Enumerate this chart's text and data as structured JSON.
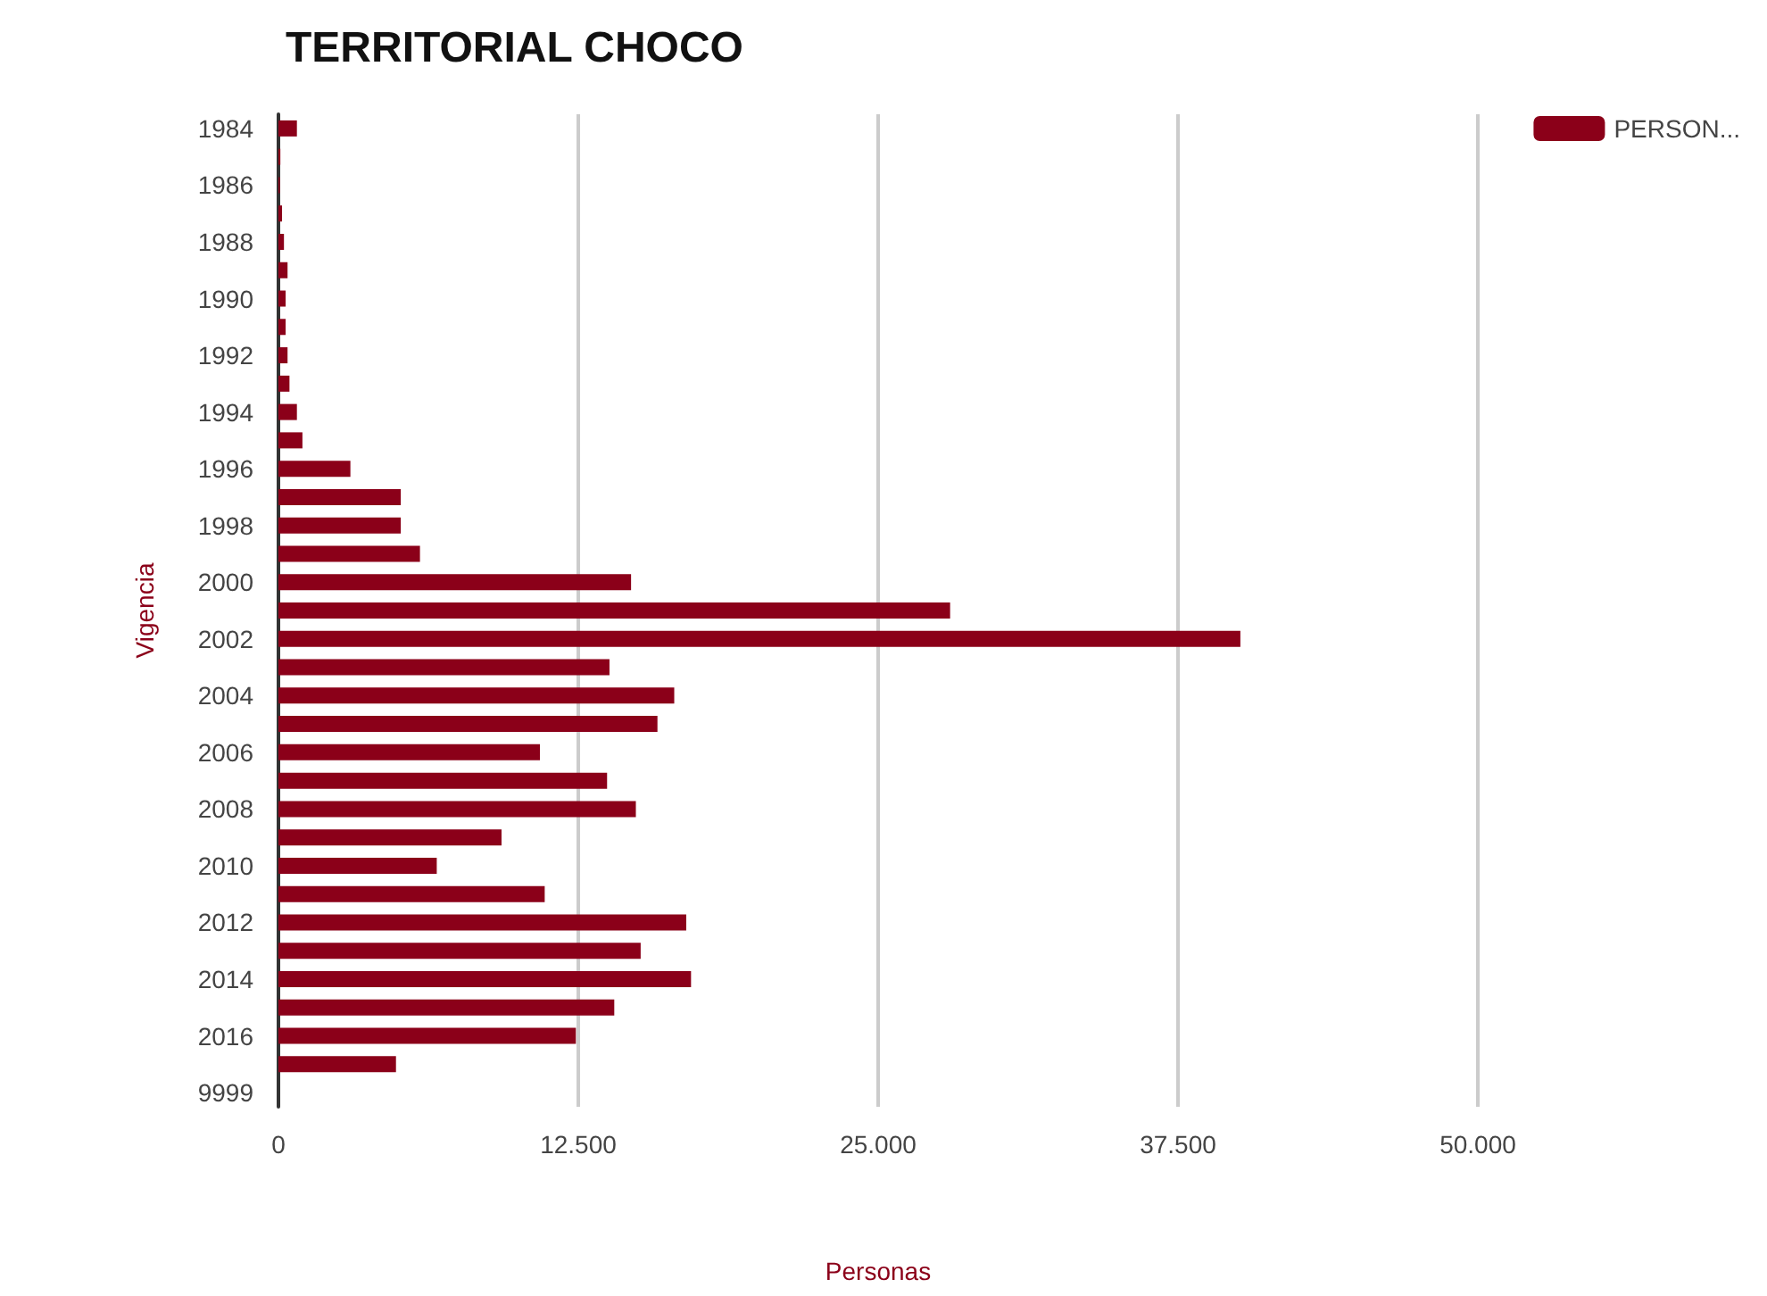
{
  "chart_data": {
    "type": "bar",
    "orientation": "horizontal",
    "title": "TERRITORIAL CHOCO",
    "xlabel": "Personas",
    "ylabel": "Vigencia",
    "categories": [
      "1984",
      null,
      "1986",
      null,
      "1988",
      null,
      "1990",
      null,
      "1992",
      null,
      "1994",
      null,
      "1996",
      null,
      "1998",
      null,
      "2000",
      null,
      "2002",
      null,
      "2004",
      null,
      "2006",
      null,
      "2008",
      null,
      "2010",
      null,
      "2012",
      null,
      "2014",
      null,
      "2016",
      null,
      "9999"
    ],
    "series": [
      {
        "name": "PERSON...",
        "color": "#8b0019",
        "values": [
          770,
          80,
          60,
          150,
          230,
          380,
          300,
          300,
          380,
          460,
          770,
          1000,
          3000,
          5100,
          5100,
          5900,
          14700,
          28000,
          40100,
          13800,
          16500,
          15800,
          10900,
          13700,
          14900,
          9300,
          6600,
          11100,
          17000,
          15100,
          17200,
          14000,
          12400,
          4900,
          0
        ]
      }
    ],
    "xlim": [
      0,
      50000
    ],
    "xticks": [
      {
        "value": 0,
        "label": "0"
      },
      {
        "value": 12500,
        "label": "12.500"
      },
      {
        "value": 25000,
        "label": "25.000"
      },
      {
        "value": 37500,
        "label": "37.500"
      },
      {
        "value": 50000,
        "label": "50.000"
      }
    ],
    "grid": "x",
    "legend": "top right"
  }
}
